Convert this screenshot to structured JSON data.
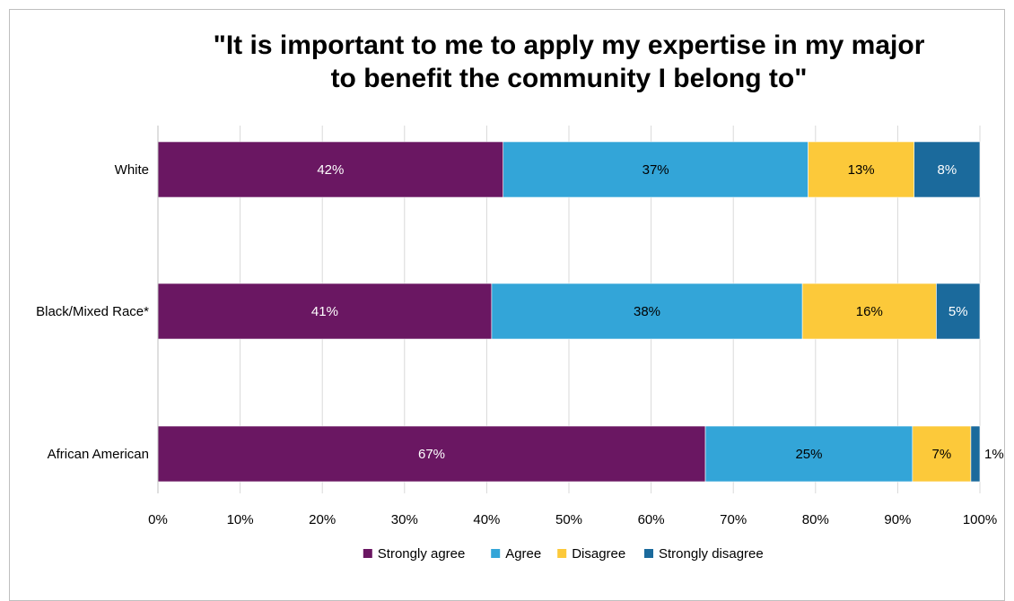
{
  "chart_data": {
    "type": "bar",
    "orientation": "horizontal",
    "stacked": true,
    "title": "\"It is important to me to apply my expertise in my major to benefit the community I belong to\"",
    "title_lines": [
      "\"It is important to me to apply my expertise in my major",
      "to benefit the community I belong to\""
    ],
    "categories": [
      "White",
      "Black/Mixed Race*",
      "African American"
    ],
    "series": [
      {
        "name": "Strongly agree",
        "color": "#6a1762",
        "label_color": "#ffffff",
        "values": [
          42,
          40.6,
          66.6
        ],
        "labels": [
          "42%",
          "41%",
          "67%"
        ]
      },
      {
        "name": "Agree",
        "color": "#33a5d8",
        "label_color": "#000000",
        "values": [
          37.1,
          37.8,
          25.2
        ],
        "labels": [
          "37%",
          "38%",
          "25%"
        ]
      },
      {
        "name": "Disagree",
        "color": "#fcc93a",
        "label_color": "#000000",
        "values": [
          12.9,
          16.3,
          7.1
        ],
        "labels": [
          "13%",
          "16%",
          "7%"
        ]
      },
      {
        "name": "Strongly disagree",
        "color": "#1b6a9c",
        "label_color": "#ffffff",
        "values": [
          8,
          5.3,
          1.1
        ],
        "labels": [
          "8%",
          "5%",
          "1%"
        ]
      }
    ],
    "xlim": [
      0,
      100
    ],
    "x_ticks": [
      "0%",
      "10%",
      "20%",
      "30%",
      "40%",
      "50%",
      "60%",
      "70%",
      "80%",
      "90%",
      "100%"
    ],
    "grid": true,
    "legend_position": "bottom",
    "xlabel": "",
    "ylabel": ""
  }
}
